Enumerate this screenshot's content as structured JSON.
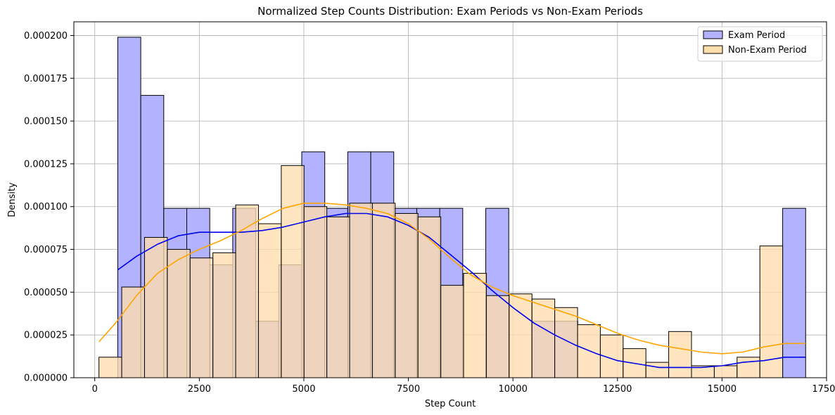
{
  "chart_data": {
    "type": "histogram",
    "title": "Normalized Step Counts Distribution: Exam Periods vs Non-Exam Periods",
    "xlabel": "Step Count",
    "ylabel": "Density",
    "xlim": [
      -500,
      17500
    ],
    "ylim": [
      0,
      0.000208
    ],
    "x_ticks": [
      0,
      2500,
      5000,
      7500,
      10000,
      12500,
      15000,
      17500
    ],
    "x_tick_labels": [
      "0",
      "2500",
      "5000",
      "7500",
      "10000",
      "12500",
      "15000",
      "17500"
    ],
    "y_ticks": [
      0,
      2.5e-05,
      5e-05,
      7.5e-05,
      0.0001,
      0.000125,
      0.00015,
      0.000175,
      0.0002
    ],
    "y_tick_labels": [
      "0.000000",
      "0.000025",
      "0.000050",
      "0.000075",
      "0.000100",
      "0.000125",
      "0.000150",
      "0.000175",
      "0.000200"
    ],
    "grid": true,
    "legend_position": "top-right",
    "series": [
      {
        "name": "Exam Period",
        "fill_color": "#b2b2ff",
        "line_color": "#0000ee",
        "bins": [
          {
            "x0": 550,
            "x1": 1100,
            "density": 0.000199
          },
          {
            "x0": 1100,
            "x1": 1650,
            "density": 0.000165
          },
          {
            "x0": 1650,
            "x1": 2200,
            "density": 9.9e-05
          },
          {
            "x0": 2200,
            "x1": 2750,
            "density": 9.9e-05
          },
          {
            "x0": 2750,
            "x1": 3300,
            "density": 6.6e-05
          },
          {
            "x0": 3300,
            "x1": 3850,
            "density": 9.9e-05
          },
          {
            "x0": 3850,
            "x1": 4400,
            "density": 3.3e-05
          },
          {
            "x0": 4400,
            "x1": 4950,
            "density": 6.6e-05
          },
          {
            "x0": 4950,
            "x1": 5500,
            "density": 0.000132
          },
          {
            "x0": 5500,
            "x1": 6050,
            "density": 9.9e-05
          },
          {
            "x0": 6050,
            "x1": 6600,
            "density": 0.000132
          },
          {
            "x0": 6600,
            "x1": 7150,
            "density": 0.000132
          },
          {
            "x0": 7150,
            "x1": 7700,
            "density": 9.9e-05
          },
          {
            "x0": 7700,
            "x1": 8250,
            "density": 9.9e-05
          },
          {
            "x0": 8250,
            "x1": 8800,
            "density": 9.9e-05
          },
          {
            "x0": 8800,
            "x1": 9350,
            "density": 0.0
          },
          {
            "x0": 9350,
            "x1": 9900,
            "density": 9.9e-05
          },
          {
            "x0": 9900,
            "x1": 10450,
            "density": 0.0
          },
          {
            "x0": 10450,
            "x1": 11000,
            "density": 3.3e-05
          },
          {
            "x0": 11000,
            "x1": 11550,
            "density": 3.3e-05
          },
          {
            "x0": 11550,
            "x1": 16450,
            "density": 0.0
          },
          {
            "x0": 16450,
            "x1": 17000,
            "density": 9.9e-05
          }
        ],
        "kde": {
          "x": [
            550,
            1000,
            1500,
            2000,
            2500,
            3000,
            3500,
            4000,
            4500,
            5000,
            5500,
            6000,
            6500,
            7000,
            7500,
            8000,
            8500,
            9000,
            9500,
            10000,
            10500,
            11000,
            11500,
            12000,
            12500,
            13000,
            13500,
            14000,
            14500,
            15000,
            15500,
            16000,
            16500,
            17000
          ],
          "y": [
            6.3e-05,
            7.1e-05,
            7.8e-05,
            8.3e-05,
            8.5e-05,
            8.5e-05,
            8.5e-05,
            8.6e-05,
            8.8e-05,
            9.1e-05,
            9.4e-05,
            9.6e-05,
            9.6e-05,
            9.4e-05,
            8.9e-05,
            8.2e-05,
            7.2e-05,
            6.2e-05,
            5.1e-05,
            4.1e-05,
            3.2e-05,
            2.5e-05,
            1.9e-05,
            1.4e-05,
            1e-05,
            8e-06,
            6e-06,
            6e-06,
            6e-06,
            7e-06,
            9e-06,
            1e-05,
            1.2e-05,
            1.2e-05
          ]
        }
      },
      {
        "name": "Non-Exam Period",
        "fill_color": "#ffdead",
        "line_color": "#ffa500",
        "bins": [
          {
            "x0": 100,
            "x1": 645,
            "density": 1.2e-05
          },
          {
            "x0": 645,
            "x1": 1190,
            "density": 5.3e-05
          },
          {
            "x0": 1190,
            "x1": 1735,
            "density": 8.2e-05
          },
          {
            "x0": 1735,
            "x1": 2280,
            "density": 7.5e-05
          },
          {
            "x0": 2280,
            "x1": 2825,
            "density": 7e-05
          },
          {
            "x0": 2825,
            "x1": 3370,
            "density": 7.3e-05
          },
          {
            "x0": 3370,
            "x1": 3915,
            "density": 0.000101
          },
          {
            "x0": 3915,
            "x1": 4460,
            "density": 9e-05
          },
          {
            "x0": 4460,
            "x1": 5005,
            "density": 0.000124
          },
          {
            "x0": 5005,
            "x1": 5550,
            "density": 0.0001
          },
          {
            "x0": 5550,
            "x1": 6095,
            "density": 9.4e-05
          },
          {
            "x0": 6095,
            "x1": 6640,
            "density": 0.000102
          },
          {
            "x0": 6640,
            "x1": 7185,
            "density": 0.000102
          },
          {
            "x0": 7185,
            "x1": 7730,
            "density": 9.6e-05
          },
          {
            "x0": 7730,
            "x1": 8275,
            "density": 9.4e-05
          },
          {
            "x0": 8275,
            "x1": 8820,
            "density": 5.4e-05
          },
          {
            "x0": 8820,
            "x1": 9365,
            "density": 6.1e-05
          },
          {
            "x0": 9365,
            "x1": 9910,
            "density": 4.8e-05
          },
          {
            "x0": 9910,
            "x1": 10455,
            "density": 4.9e-05
          },
          {
            "x0": 10455,
            "x1": 11000,
            "density": 4.6e-05
          },
          {
            "x0": 11000,
            "x1": 11545,
            "density": 4.1e-05
          },
          {
            "x0": 11545,
            "x1": 12090,
            "density": 3.1e-05
          },
          {
            "x0": 12090,
            "x1": 12635,
            "density": 2.5e-05
          },
          {
            "x0": 12635,
            "x1": 13180,
            "density": 1.7e-05
          },
          {
            "x0": 13180,
            "x1": 13725,
            "density": 9e-06
          },
          {
            "x0": 13725,
            "x1": 14270,
            "density": 2.7e-05
          },
          {
            "x0": 14270,
            "x1": 14815,
            "density": 7e-06
          },
          {
            "x0": 14815,
            "x1": 15360,
            "density": 7e-06
          },
          {
            "x0": 15360,
            "x1": 15905,
            "density": 1.2e-05
          },
          {
            "x0": 15905,
            "x1": 16450,
            "density": 7.7e-05
          }
        ],
        "kde": {
          "x": [
            100,
            500,
            1000,
            1500,
            2000,
            2500,
            3000,
            3500,
            4000,
            4500,
            5000,
            5500,
            6000,
            6500,
            7000,
            7500,
            8000,
            8500,
            9000,
            9500,
            10000,
            10500,
            11000,
            11500,
            12000,
            12500,
            13000,
            13500,
            14000,
            14500,
            15000,
            15500,
            16000,
            16500,
            17000
          ],
          "y": [
            2.1e-05,
            3.2e-05,
            4.8e-05,
            6.1e-05,
            6.9e-05,
            7.5e-05,
            8e-05,
            8.6e-05,
            9.3e-05,
            9.9e-05,
            0.000102,
            0.000102,
            0.000101,
            9.9e-05,
            9.6e-05,
            9e-05,
            8.1e-05,
            7e-05,
            6e-05,
            5.3e-05,
            4.8e-05,
            4.4e-05,
            4e-05,
            3.6e-05,
            3.1e-05,
            2.6e-05,
            2.2e-05,
            1.9e-05,
            1.7e-05,
            1.5e-05,
            1.4e-05,
            1.5e-05,
            1.8e-05,
            2e-05,
            2e-05
          ]
        }
      }
    ]
  }
}
